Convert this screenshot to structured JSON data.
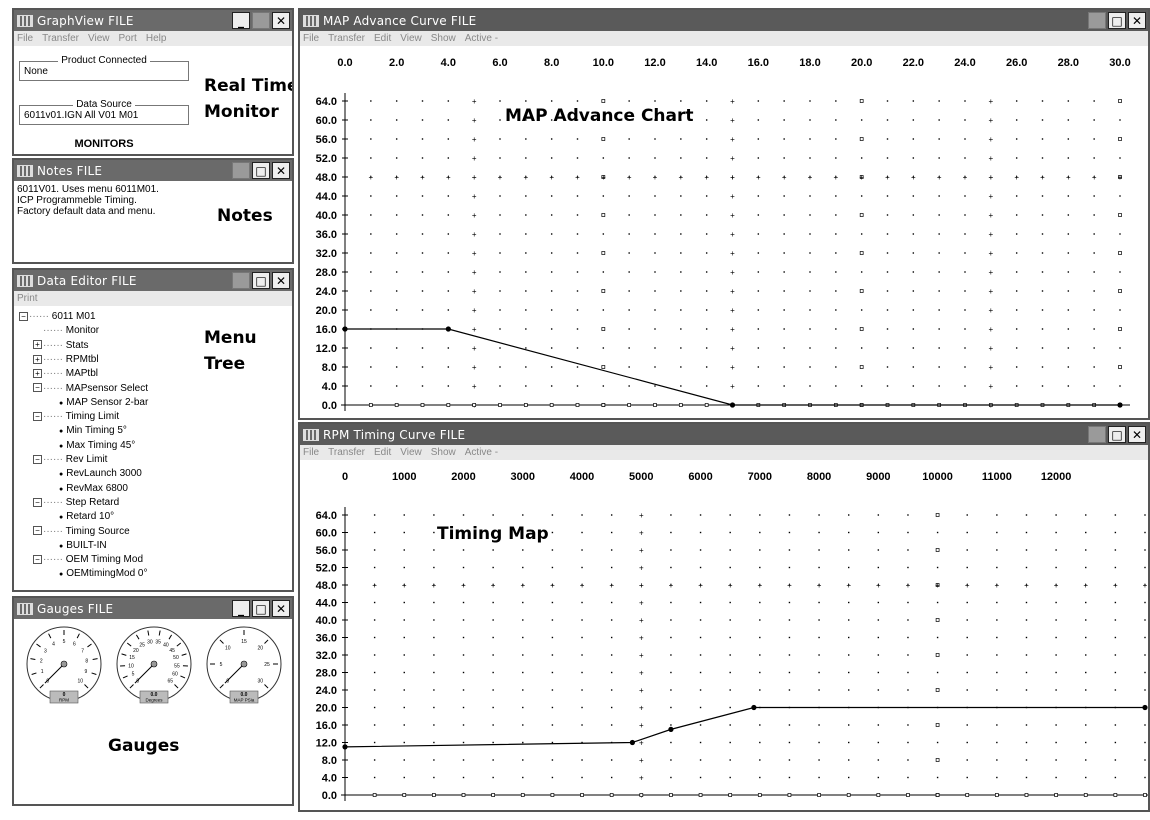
{
  "graphview": {
    "title": "GraphView FILE",
    "menu": [
      "File",
      "Transfer",
      "View",
      "Port",
      "Help"
    ],
    "product_connected_label": "Product Connected",
    "product_connected_value": "None",
    "data_source_label": "Data Source",
    "data_source_value": "6011v01.IGN All V01 M01",
    "monitors_label": "MONITORS",
    "callout_line1": "Real Time",
    "callout_line2": "Monitor"
  },
  "notes": {
    "title": "Notes FILE",
    "lines": [
      "6011V01.  Uses menu 6011M01.",
      "ICP Programmeble Timing.",
      "Factory default data and menu."
    ],
    "callout": "Notes"
  },
  "data_editor": {
    "title": "Data Editor FILE",
    "menu": [
      "Print"
    ],
    "callout_line1": "Menu",
    "callout_line2": "Tree",
    "tree": [
      {
        "text": "6011 M01",
        "level": 0,
        "pm": "−"
      },
      {
        "text": "Monitor",
        "level": 1,
        "pm": ""
      },
      {
        "text": "Stats",
        "level": 1,
        "pm": "+"
      },
      {
        "text": "RPMtbl",
        "level": 1,
        "pm": "+"
      },
      {
        "text": "MAPtbl",
        "level": 1,
        "pm": "+"
      },
      {
        "text": "MAPsensor Select",
        "level": 1,
        "pm": "−"
      },
      {
        "text": "MAP Sensor 2-bar",
        "level": 2,
        "pm": ""
      },
      {
        "text": "Timing Limit",
        "level": 1,
        "pm": "−"
      },
      {
        "text": "Min Timing  5°",
        "level": 2,
        "pm": ""
      },
      {
        "text": "Max Timing  45°",
        "level": 2,
        "pm": ""
      },
      {
        "text": "Rev Limit",
        "level": 1,
        "pm": "−"
      },
      {
        "text": "RevLaunch  3000",
        "level": 2,
        "pm": ""
      },
      {
        "text": "RevMax  6800",
        "level": 2,
        "pm": ""
      },
      {
        "text": "Step Retard",
        "level": 1,
        "pm": "−"
      },
      {
        "text": "Retard 10°",
        "level": 2,
        "pm": ""
      },
      {
        "text": "Timing Source",
        "level": 1,
        "pm": "−"
      },
      {
        "text": "BUILT-IN",
        "level": 2,
        "pm": ""
      },
      {
        "text": "OEM Timing Mod",
        "level": 1,
        "pm": "−"
      },
      {
        "text": "OEMtimingMod  0°",
        "level": 2,
        "pm": ""
      }
    ]
  },
  "gauges": {
    "title": "Gauges FILE",
    "callout": "Gauges",
    "items": [
      {
        "value": "0",
        "unit": "RPM",
        "ticks": [
          "0",
          "1",
          "2",
          "3",
          "4",
          "5",
          "6",
          "7",
          "8",
          "9",
          "10"
        ]
      },
      {
        "value": "0.0",
        "unit": "Degrees",
        "ticks": [
          "0",
          "5",
          "10",
          "15",
          "20",
          "25",
          "30",
          "35",
          "40",
          "45",
          "50",
          "55",
          "60",
          "65"
        ]
      },
      {
        "value": "0.0",
        "unit": "MAP PSia",
        "ticks": [
          "0",
          "5",
          "10",
          "15",
          "20",
          "25",
          "30"
        ]
      }
    ]
  },
  "map_window": {
    "title": "MAP Advance Curve FILE",
    "menu": [
      "File",
      "Transfer",
      "Edit",
      "View",
      "Show",
      "Active -"
    ],
    "callout": "MAP Advance Chart"
  },
  "rpm_window": {
    "title": "RPM Timing Curve FILE",
    "menu": [
      "File",
      "Transfer",
      "Edit",
      "View",
      "Show",
      "Active -"
    ],
    "callout": "Timing Map"
  },
  "chart_data": [
    {
      "type": "line",
      "name": "map",
      "x_ticks": [
        "0.0",
        "2.0",
        "4.0",
        "6.0",
        "8.0",
        "10.0",
        "12.0",
        "14.0",
        "16.0",
        "18.0",
        "20.0",
        "22.0",
        "24.0",
        "26.0",
        "28.0",
        "30.0"
      ],
      "y_ticks": [
        "64.0",
        "60.0",
        "56.0",
        "52.0",
        "48.0",
        "44.0",
        "40.0",
        "36.0",
        "32.0",
        "28.0",
        "24.0",
        "20.0",
        "16.0",
        "12.0",
        "8.0",
        "4.0",
        "0.0"
      ],
      "xlim": [
        0,
        30
      ],
      "ylim": [
        0,
        64
      ],
      "series": [
        {
          "x": [
            0,
            4,
            15,
            30
          ],
          "y": [
            16,
            16,
            0,
            0
          ]
        }
      ]
    },
    {
      "type": "line",
      "name": "rpm",
      "x_ticks": [
        "0",
        "1000",
        "2000",
        "3000",
        "4000",
        "5000",
        "6000",
        "7000",
        "8000",
        "9000",
        "10000",
        "11000",
        "12000"
      ],
      "y_ticks": [
        "64.0",
        "60.0",
        "56.0",
        "52.0",
        "48.0",
        "44.0",
        "40.0",
        "36.0",
        "32.0",
        "28.0",
        "24.0",
        "20.0",
        "16.0",
        "12.0",
        "8.0",
        "4.0",
        "0.0"
      ],
      "xlim": [
        0,
        13500
      ],
      "ylim": [
        0,
        64
      ],
      "series": [
        {
          "x": [
            0,
            4850,
            5500,
            6900,
            13500
          ],
          "y": [
            11,
            12,
            15,
            20,
            20
          ]
        }
      ]
    }
  ]
}
